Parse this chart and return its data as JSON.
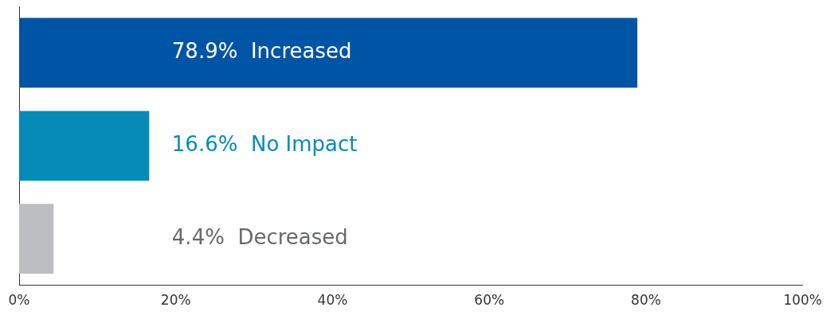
{
  "chart_data": {
    "type": "bar",
    "orientation": "horizontal",
    "categories": [
      "Increased",
      "No Impact",
      "Decreased"
    ],
    "values": [
      78.9,
      16.6,
      4.4
    ],
    "colors": [
      "#0054a6",
      "#068bb8",
      "#bdbec2"
    ],
    "value_labels": [
      "78.9%",
      "16.6%",
      "4.4%"
    ],
    "xlim": [
      0,
      100
    ],
    "xticks": [
      {
        "value": 0,
        "label": "0%"
      },
      {
        "value": 20,
        "label": "20%"
      },
      {
        "value": 40,
        "label": "40%"
      },
      {
        "value": 60,
        "label": "60%"
      },
      {
        "value": 80,
        "label": "80%"
      },
      {
        "value": 100,
        "label": "100%"
      }
    ],
    "tick_labels": "x",
    "grid": false,
    "legend": false
  }
}
